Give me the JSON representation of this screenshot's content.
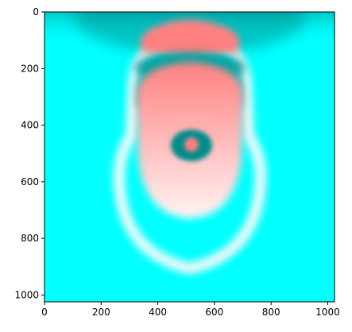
{
  "chart_data": {
    "type": "heatmap",
    "title": "",
    "xlabel": "",
    "ylabel": "",
    "xlim": [
      0,
      1024
    ],
    "ylim": [
      1024,
      0
    ],
    "x_ticks": [
      0,
      200,
      400,
      600,
      800,
      1000
    ],
    "y_ticks": [
      0,
      200,
      400,
      600,
      800,
      1000
    ],
    "x_tick_labels": [
      "0",
      "200",
      "400",
      "600",
      "800",
      "1000"
    ],
    "y_tick_labels": [
      "0",
      "200",
      "400",
      "600",
      "800",
      "1000"
    ],
    "colormap": {
      "background": "#00ffff",
      "dark": "#008b8b",
      "salmon": "#ff8080",
      "light": "#fff0f0"
    }
  }
}
